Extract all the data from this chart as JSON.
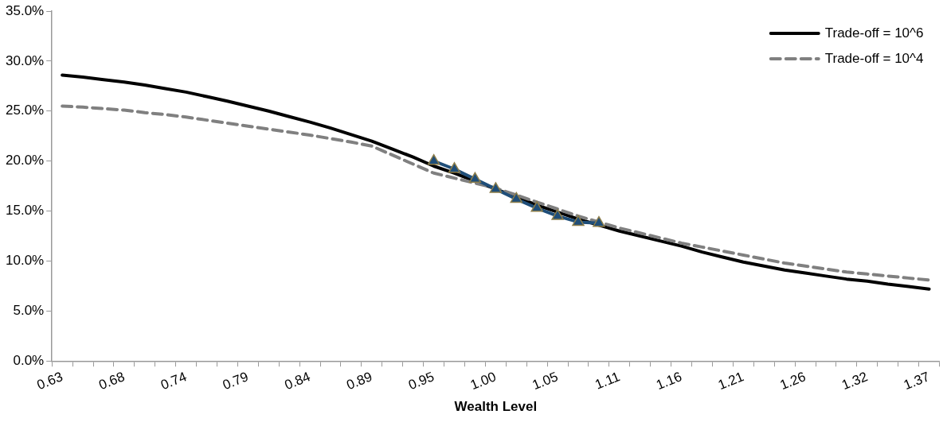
{
  "chart_data": {
    "type": "line",
    "xlabel": "Wealth Level",
    "categories": [
      "0.63",
      null,
      null,
      "0.68",
      null,
      null,
      "0.74",
      null,
      null,
      "0.79",
      null,
      null,
      "0.84",
      null,
      null,
      "0.89",
      null,
      null,
      "0.95",
      null,
      null,
      "1.00",
      null,
      null,
      "1.05",
      null,
      null,
      "1.11",
      null,
      null,
      "1.16",
      null,
      null,
      "1.21",
      null,
      null,
      "1.26",
      null,
      null,
      "1.32",
      null,
      null,
      "1.37"
    ],
    "ylim": [
      0,
      35
    ],
    "yticks": [
      {
        "value": 0,
        "label": "0.0%"
      },
      {
        "value": 5,
        "label": "5.0%"
      },
      {
        "value": 10,
        "label": "10.0%"
      },
      {
        "value": 15,
        "label": "15.0%"
      },
      {
        "value": 20,
        "label": "20.0%"
      },
      {
        "value": 25,
        "label": "25.0%"
      },
      {
        "value": 30,
        "label": "30.0%"
      },
      {
        "value": 35,
        "label": "35.0%"
      }
    ],
    "grid": false,
    "legend": "top right",
    "series": [
      {
        "name": "Trade-off = 10^6",
        "color": "#000000",
        "line_style": "solid",
        "marker": "none",
        "values": [
          28.6,
          28.4,
          28.15,
          27.9,
          27.6,
          27.25,
          26.9,
          26.45,
          26.0,
          25.5,
          25.0,
          24.45,
          23.9,
          23.3,
          22.65,
          22.0,
          21.2,
          20.4,
          19.5,
          18.8,
          18.0,
          17.2,
          16.4,
          15.6,
          14.9,
          14.2,
          13.6,
          13.0,
          12.5,
          12.0,
          11.5,
          10.9,
          10.4,
          9.9,
          9.5,
          9.1,
          8.8,
          8.5,
          8.2,
          8.0,
          7.7,
          7.45,
          7.2
        ]
      },
      {
        "name": "Trade-off = 10^4",
        "color": "#808080",
        "line_style": "dashed",
        "marker": "none",
        "values": [
          25.5,
          25.4,
          25.25,
          25.1,
          24.85,
          24.65,
          24.4,
          24.1,
          23.8,
          23.5,
          23.2,
          22.9,
          22.6,
          22.25,
          21.9,
          21.5,
          20.6,
          19.7,
          18.8,
          18.3,
          17.8,
          17.3,
          16.6,
          15.9,
          15.2,
          14.5,
          13.9,
          13.3,
          12.8,
          12.3,
          11.8,
          11.4,
          11.0,
          10.6,
          10.2,
          9.8,
          9.5,
          9.2,
          8.9,
          8.7,
          8.5,
          8.3,
          8.1
        ]
      },
      {
        "color": "#1f4e79",
        "line_style": "solid",
        "marker": "triangle",
        "values": [
          null,
          null,
          null,
          null,
          null,
          null,
          null,
          null,
          null,
          null,
          null,
          null,
          null,
          null,
          null,
          null,
          null,
          null,
          20.0,
          19.2,
          18.2,
          17.2,
          16.2,
          15.3,
          14.5,
          13.9,
          13.8,
          null,
          null,
          null,
          null,
          null,
          null,
          null,
          null,
          null,
          null,
          null,
          null,
          null,
          null,
          null,
          null
        ]
      }
    ]
  }
}
